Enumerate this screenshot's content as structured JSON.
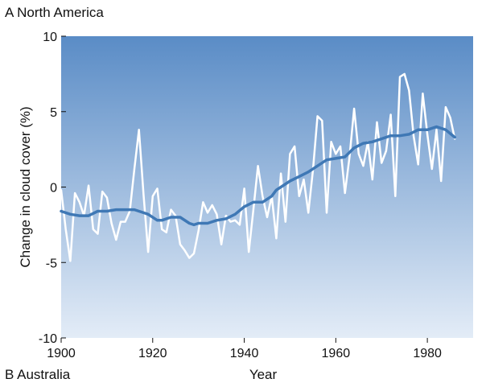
{
  "panels": {
    "a_label": "A  North America",
    "b_label": "B  Australia"
  },
  "colors": {
    "bg_top": "#5a8cc6",
    "bg_bottom": "#e3ecf7",
    "raw": "#ffffff",
    "smooth": "#3f78b5"
  },
  "chart_data": {
    "type": "line",
    "xlabel": "Year",
    "ylabel": "Change in cloud cover (%)",
    "xlim": [
      1900,
      1990
    ],
    "ylim": [
      -10,
      10
    ],
    "xticks": [
      1900,
      1920,
      1940,
      1960,
      1980
    ],
    "yticks": [
      -10,
      -5,
      0,
      5,
      10
    ],
    "grid": false,
    "series": [
      {
        "x": [
          1900,
          1901,
          1902,
          1903,
          1904,
          1905,
          1906,
          1907,
          1908,
          1909,
          1910,
          1911,
          1912,
          1913,
          1914,
          1915,
          1916,
          1917,
          1918,
          1919,
          1920,
          1921,
          1922,
          1923,
          1924,
          1925,
          1926,
          1927,
          1928,
          1929,
          1930,
          1931,
          1932,
          1933,
          1934,
          1935,
          1936,
          1937,
          1938,
          1939,
          1940,
          1941,
          1942,
          1943,
          1944,
          1945,
          1946,
          1947,
          1948,
          1949,
          1950,
          1951,
          1952,
          1953,
          1954,
          1955,
          1956,
          1957,
          1958,
          1959,
          1960,
          1961,
          1962,
          1963,
          1964,
          1965,
          1966,
          1967,
          1968,
          1969,
          1970,
          1971,
          1972,
          1973,
          1974,
          1975,
          1976,
          1977,
          1978,
          1979,
          1980,
          1981,
          1982,
          1983,
          1984,
          1985,
          1986
        ],
        "values": [
          -0.2,
          -2.8,
          -4.9,
          -0.4,
          -1.0,
          -1.9,
          0.1,
          -2.8,
          -3.1,
          -0.3,
          -0.7,
          -2.4,
          -3.5,
          -2.3,
          -2.3,
          -1.6,
          1.2,
          3.8,
          -0.5,
          -4.3,
          -0.6,
          -0.1,
          -2.8,
          -3.0,
          -1.5,
          -1.9,
          -3.8,
          -4.2,
          -4.7,
          -4.4,
          -2.9,
          -1.0,
          -1.7,
          -1.2,
          -1.8,
          -3.8,
          -1.9,
          -2.3,
          -2.2,
          -2.5,
          -0.1,
          -4.3,
          -1.5,
          1.4,
          -0.6,
          -2.0,
          -0.6,
          -3.4,
          0.9,
          -2.3,
          2.2,
          2.7,
          -0.6,
          0.5,
          -1.7,
          1.1,
          4.7,
          4.4,
          -1.7,
          3.0,
          2.2,
          2.7,
          -0.4,
          2.0,
          5.2,
          2.2,
          1.4,
          3.0,
          0.5,
          4.3,
          1.6,
          2.4,
          4.8,
          -0.6,
          7.3,
          7.5,
          6.4,
          3.4,
          1.5,
          6.2,
          3.5,
          1.2,
          3.8,
          0.4,
          5.3,
          4.6,
          3.2
        ]
      },
      {
        "x": [
          1900,
          1902,
          1904,
          1906,
          1908,
          1910,
          1912,
          1914,
          1916,
          1918,
          1919,
          1921,
          1922,
          1924,
          1926,
          1928,
          1929,
          1930,
          1932,
          1934,
          1936,
          1938,
          1940,
          1942,
          1944,
          1946,
          1947,
          1948,
          1950,
          1952,
          1954,
          1956,
          1958,
          1960,
          1962,
          1964,
          1966,
          1968,
          1970,
          1972,
          1974,
          1976,
          1978,
          1980,
          1982,
          1984,
          1986
        ],
        "values": [
          -1.6,
          -1.8,
          -1.9,
          -1.9,
          -1.6,
          -1.6,
          -1.5,
          -1.5,
          -1.5,
          -1.7,
          -1.8,
          -2.2,
          -2.2,
          -2.0,
          -2.0,
          -2.4,
          -2.5,
          -2.4,
          -2.4,
          -2.2,
          -2.1,
          -1.8,
          -1.3,
          -1.0,
          -1.0,
          -0.6,
          -0.2,
          0.0,
          0.4,
          0.7,
          1.0,
          1.4,
          1.8,
          1.9,
          2.0,
          2.6,
          2.9,
          3.0,
          3.2,
          3.4,
          3.4,
          3.5,
          3.8,
          3.8,
          4.0,
          3.8,
          3.3
        ]
      }
    ]
  }
}
